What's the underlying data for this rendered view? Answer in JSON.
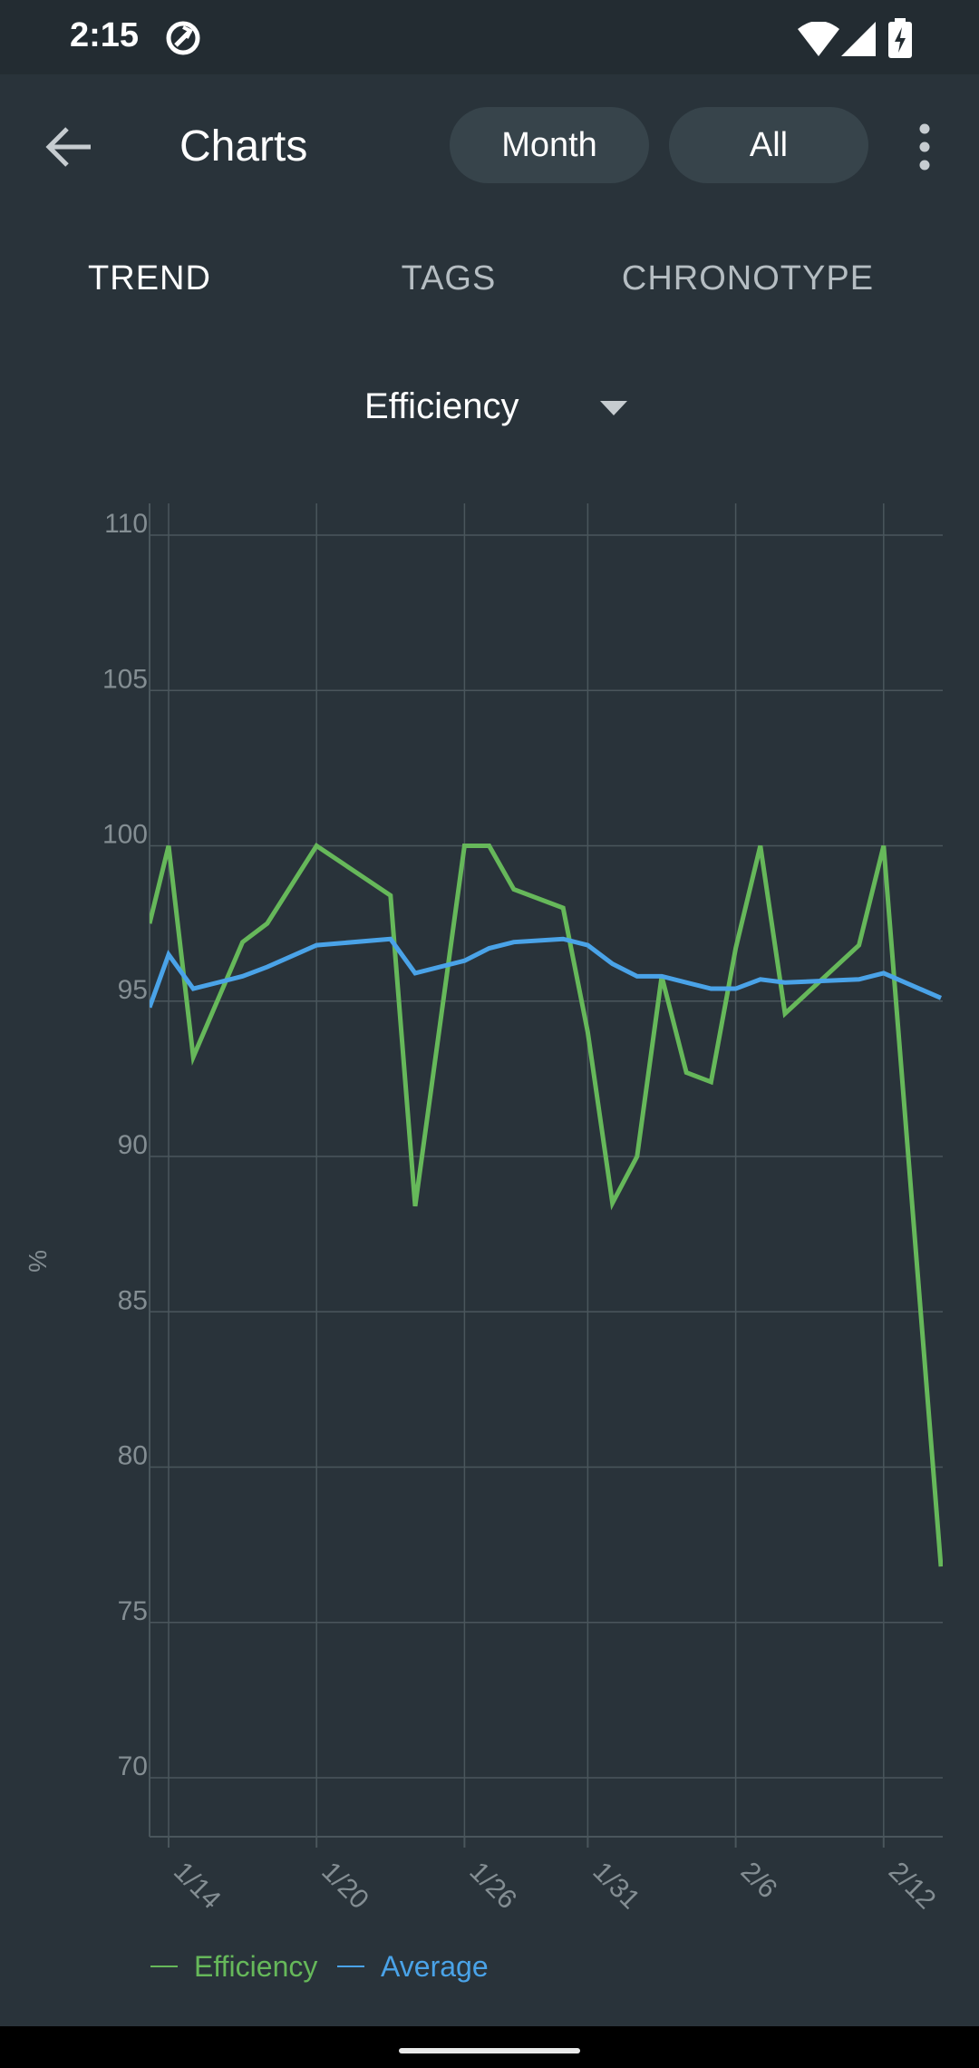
{
  "status_bar": {
    "time": "2:15",
    "icons": [
      "sync-icon",
      "wifi-icon",
      "cell-signal-icon",
      "battery-charging-icon"
    ]
  },
  "app_bar": {
    "title": "Charts",
    "back_icon": "arrow-left-icon",
    "filter_month": "Month",
    "filter_all": "All",
    "more_icon": "more-vert-icon"
  },
  "tabs": [
    {
      "label": "TREND",
      "active": true
    },
    {
      "label": "TAGS",
      "active": false
    },
    {
      "label": "CHRONOTYPE",
      "active": false
    }
  ],
  "metric_selector": {
    "label": "Efficiency",
    "icon": "dropdown-caret-icon"
  },
  "colors": {
    "background": "#29333a",
    "efficiency": "#66b85a",
    "average": "#4aa3e8",
    "grid": "#4a565c",
    "axis_text": "#848e93"
  },
  "chart_data": {
    "type": "line",
    "ylabel": "%",
    "ylim": [
      70,
      110
    ],
    "yticks": [
      "110",
      "105",
      "100",
      "95",
      "90",
      "85",
      "80",
      "75",
      "70"
    ],
    "xtick_labels": [
      "1/14",
      "1/20",
      "1/26",
      "1/31",
      "2/6",
      "2/12"
    ],
    "grid": true,
    "legend_position": "bottom-left",
    "series": [
      {
        "name": "Efficiency",
        "color": "#66b85a",
        "points": [
          [
            "1/13",
            97.5
          ],
          [
            "1/14",
            100
          ],
          [
            "1/15",
            93.2
          ],
          [
            "1/17",
            96.9
          ],
          [
            "1/18",
            97.5
          ],
          [
            "1/20",
            100
          ],
          [
            "1/23",
            98.4
          ],
          [
            "1/24",
            88.4
          ],
          [
            "1/26",
            100
          ],
          [
            "1/27",
            100
          ],
          [
            "1/28",
            98.6
          ],
          [
            "1/30",
            98.0
          ],
          [
            "1/31",
            94.0
          ],
          [
            "2/1",
            88.5
          ],
          [
            "2/2",
            90.0
          ],
          [
            "2/3",
            95.8
          ],
          [
            "2/4",
            92.7
          ],
          [
            "2/5",
            92.4
          ],
          [
            "2/6",
            96.7
          ],
          [
            "2/7",
            100
          ],
          [
            "2/8",
            94.6
          ],
          [
            "2/11",
            96.8
          ],
          [
            "2/12",
            100
          ],
          [
            "2/13",
            76.8
          ]
        ]
      },
      {
        "name": "Average",
        "color": "#4aa3e8",
        "points": [
          [
            "1/13",
            94.8
          ],
          [
            "1/14",
            96.5
          ],
          [
            "1/15",
            95.4
          ],
          [
            "1/17",
            95.8
          ],
          [
            "1/18",
            96.1
          ],
          [
            "1/20",
            96.8
          ],
          [
            "1/23",
            97.0
          ],
          [
            "1/24",
            95.9
          ],
          [
            "1/26",
            96.3
          ],
          [
            "1/27",
            96.7
          ],
          [
            "1/28",
            96.9
          ],
          [
            "1/30",
            97.0
          ],
          [
            "1/31",
            96.8
          ],
          [
            "2/1",
            96.2
          ],
          [
            "2/2",
            95.8
          ],
          [
            "2/3",
            95.8
          ],
          [
            "2/5",
            95.4
          ],
          [
            "2/6",
            95.4
          ],
          [
            "2/7",
            95.7
          ],
          [
            "2/8",
            95.6
          ],
          [
            "2/11",
            95.7
          ],
          [
            "2/12",
            95.9
          ],
          [
            "2/13",
            95.1
          ]
        ]
      }
    ]
  }
}
